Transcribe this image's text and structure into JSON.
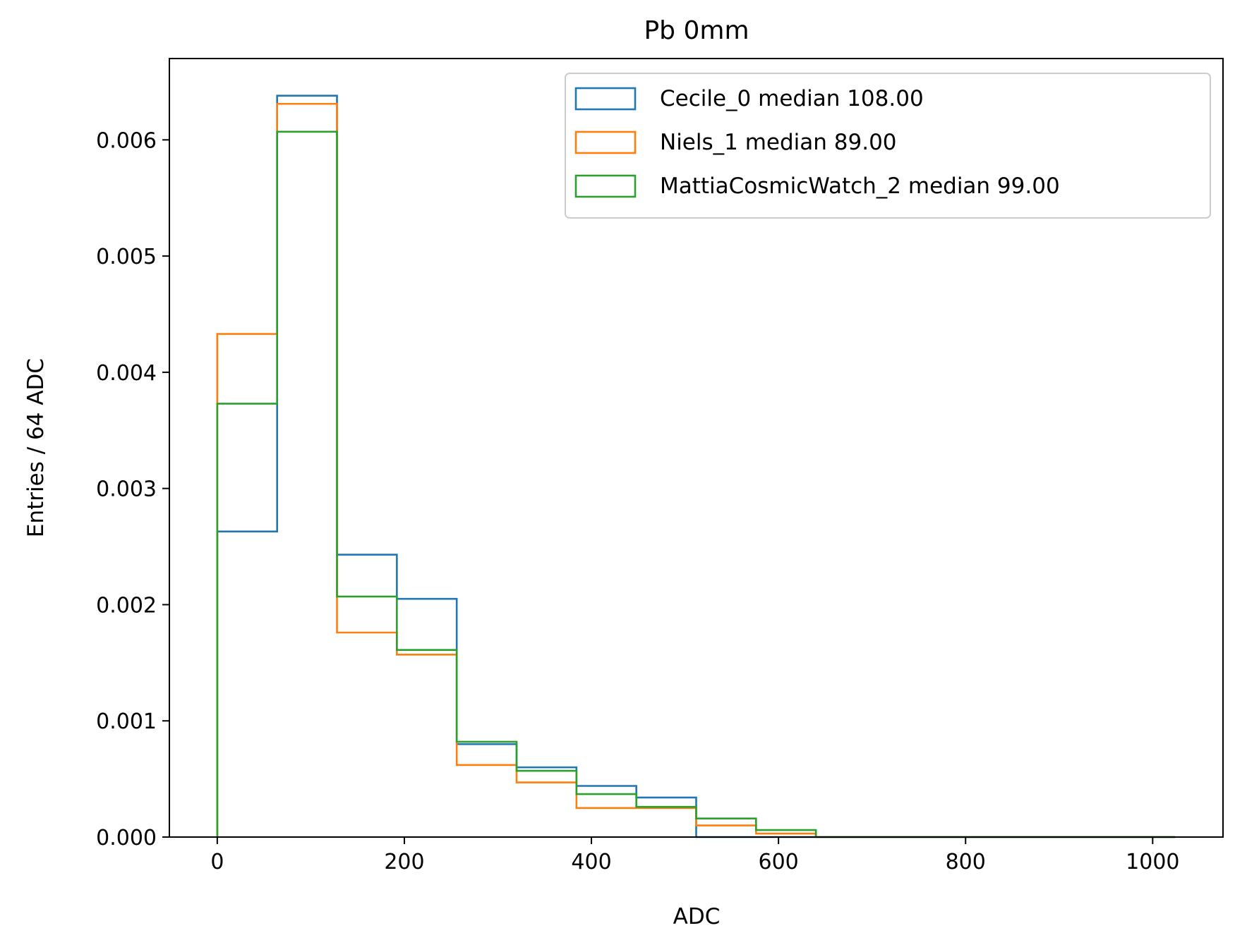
{
  "chart_data": {
    "type": "step-histogram",
    "title": "Pb 0mm",
    "xlabel": "ADC",
    "ylabel": "Entries / 64 ADC",
    "xlim": [
      -51.2,
      1075.2
    ],
    "ylim": [
      0,
      0.0067
    ],
    "xticks": [
      0,
      200,
      400,
      600,
      800,
      1000
    ],
    "xtick_labels": [
      "0",
      "200",
      "400",
      "600",
      "800",
      "1000"
    ],
    "yticks": [
      0,
      0.001,
      0.002,
      0.003,
      0.004,
      0.005,
      0.006
    ],
    "ytick_labels": [
      "0.000",
      "0.001",
      "0.002",
      "0.003",
      "0.004",
      "0.005",
      "0.006"
    ],
    "grid": false,
    "legend_position": "top-right",
    "bin_edges": [
      0,
      64,
      128,
      192,
      256,
      320,
      384,
      448,
      512,
      576,
      640,
      704,
      768,
      832,
      896,
      960,
      1024
    ],
    "series": [
      {
        "name": "Cecile_0 median 108.00",
        "color": "#1f77b4",
        "values": [
          0.00263,
          0.00638,
          0.00243,
          0.00205,
          0.0008,
          0.0006,
          0.00044,
          0.00034,
          0.0,
          0.0,
          0.0,
          0.0,
          0.0,
          0.0,
          0.0,
          0.0
        ]
      },
      {
        "name": "Niels_1 median 89.00",
        "color": "#ff7f0e",
        "values": [
          0.00433,
          0.00631,
          0.00176,
          0.00157,
          0.00062,
          0.00047,
          0.00025,
          0.00025,
          0.0001,
          3e-05,
          0.0,
          0.0,
          0.0,
          0.0,
          0.0,
          0.0
        ]
      },
      {
        "name": "MattiaCosmicWatch_2 median 99.00",
        "color": "#2ca02c",
        "values": [
          0.00373,
          0.00607,
          0.00207,
          0.00161,
          0.00082,
          0.00057,
          0.00037,
          0.00026,
          0.00016,
          6e-05,
          0.0,
          0.0,
          0.0,
          0.0,
          0.0,
          0.0
        ]
      }
    ]
  }
}
